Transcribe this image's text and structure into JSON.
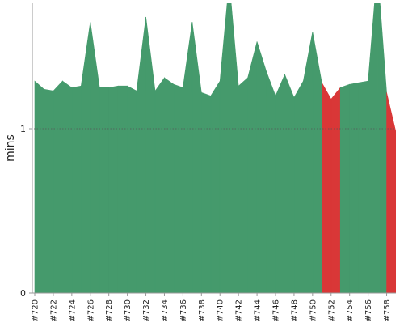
{
  "chart_data": {
    "type": "area",
    "ylabel": "mins",
    "xlabel": "",
    "title": "",
    "ylim": [
      0,
      1.75
    ],
    "yticks": [
      0,
      1
    ],
    "yticks_labels": [
      "0",
      "1"
    ],
    "gridline_at": 1,
    "grid": "dotted horizontal at 1",
    "legend": "none",
    "x_labels": [
      "#720",
      "#722",
      "#724",
      "#726",
      "#728",
      "#730",
      "#732",
      "#734",
      "#736",
      "#738",
      "#740",
      "#742",
      "#744",
      "#746",
      "#748",
      "#750",
      "#752",
      "#754",
      "#756",
      "#758"
    ],
    "x": [
      720,
      721,
      722,
      723,
      724,
      725,
      726,
      727,
      728,
      729,
      730,
      731,
      732,
      733,
      734,
      735,
      736,
      737,
      738,
      739,
      740,
      741,
      742,
      743,
      744,
      745,
      746,
      747,
      748,
      749,
      750,
      751,
      752,
      753,
      754,
      755,
      756,
      757,
      758,
      759
    ],
    "y": [
      1.29,
      1.24,
      1.23,
      1.29,
      1.25,
      1.26,
      1.65,
      1.25,
      1.25,
      1.26,
      1.26,
      1.23,
      1.68,
      1.23,
      1.31,
      1.27,
      1.25,
      1.65,
      1.22,
      1.2,
      1.29,
      1.9,
      1.26,
      1.31,
      1.53,
      1.35,
      1.2,
      1.33,
      1.19,
      1.29,
      1.59,
      1.28,
      1.18,
      1.25,
      1.27,
      1.28,
      1.29,
      1.98,
      1.22,
      0.98
    ],
    "status": [
      "ok",
      "ok",
      "ok",
      "ok",
      "ok",
      "ok",
      "ok",
      "ok",
      "ok",
      "ok",
      "ok",
      "ok",
      "ok",
      "ok",
      "ok",
      "ok",
      "ok",
      "ok",
      "ok",
      "ok",
      "ok",
      "ok",
      "ok",
      "ok",
      "ok",
      "ok",
      "ok",
      "ok",
      "ok",
      "ok",
      "ok",
      "ok",
      "failed",
      "failed",
      "ok",
      "ok",
      "ok",
      "ok",
      "ok",
      "failed"
    ],
    "colors": {
      "ok": "#459a6c",
      "failed": "#d93737",
      "axis": "#999999",
      "grid": "#555555",
      "text": "#222222"
    }
  }
}
